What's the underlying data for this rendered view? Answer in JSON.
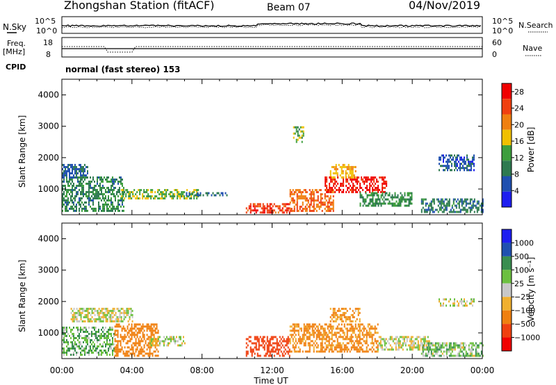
{
  "header": {
    "station_title": "Zhongshan Station (fitACF)",
    "beam": "Beam 07",
    "date": "04/Nov/2019"
  },
  "summary_panel": {
    "nsky_label": "N.Sky",
    "nsky_ticks": [
      "10^5",
      "10^0"
    ],
    "nsearch_label": "N.Search",
    "nsearch_ticks": [
      "10^5",
      "10^0"
    ],
    "freq_label": "Freq.",
    "freq_unit": "[MHz]",
    "freq_ticks": [
      "18",
      "8"
    ],
    "nave_label": "Nave",
    "nave_ticks": [
      "60",
      "0"
    ],
    "cpid_label": "CPID",
    "cpid_text": "normal (fast stereo) 153"
  },
  "colors": {
    "power_scale": [
      "#1e1ef0",
      "#2050b0",
      "#2e7a50",
      "#3d9e3d",
      "#f0c000",
      "#f08010",
      "#f04010",
      "#f00000"
    ],
    "velocity_scale": [
      "#f00000",
      "#f04010",
      "#f08010",
      "#f0b030",
      "#c8c8c8",
      "#6cc040",
      "#3a8e50",
      "#2050b0",
      "#1e1ef0"
    ]
  },
  "chart_data": [
    {
      "type": "heatmap",
      "panel": "power",
      "ylabel": "Slant Range [km]",
      "yticks": [
        "1000",
        "2000",
        "3000",
        "4000"
      ],
      "ylim": [
        180,
        4500
      ],
      "xticks": [
        "00:00",
        "04:00",
        "08:00",
        "12:00",
        "16:00",
        "20:00",
        "00:00"
      ],
      "colorbar_label": "Power [dB]",
      "colorbar_ticks": [
        "4",
        "8",
        "12",
        "16",
        "20",
        "24",
        "28"
      ],
      "colorbar_range": [
        0,
        30
      ],
      "regions": [
        {
          "t0": 0.0,
          "t1": 3.5,
          "r0": 300,
          "r1": 1400,
          "value": 10
        },
        {
          "t0": 0.0,
          "t1": 1.5,
          "r0": 1400,
          "r1": 1800,
          "value": 7
        },
        {
          "t0": 3.3,
          "t1": 7.8,
          "r0": 700,
          "r1": 1000,
          "value": 14
        },
        {
          "t0": 7.0,
          "t1": 9.5,
          "r0": 800,
          "r1": 900,
          "value": 8
        },
        {
          "t0": 10.5,
          "t1": 13.0,
          "r0": 250,
          "r1": 550,
          "value": 25
        },
        {
          "t0": 13.0,
          "t1": 15.5,
          "r0": 300,
          "r1": 1000,
          "value": 22
        },
        {
          "t0": 15.0,
          "t1": 18.5,
          "r0": 900,
          "r1": 1400,
          "value": 28
        },
        {
          "t0": 15.3,
          "t1": 16.8,
          "r0": 1400,
          "r1": 1800,
          "value": 18
        },
        {
          "t0": 17.0,
          "t1": 20.0,
          "r0": 500,
          "r1": 900,
          "value": 11
        },
        {
          "t0": 20.5,
          "t1": 24.0,
          "r0": 300,
          "r1": 700,
          "value": 9
        },
        {
          "t0": 21.5,
          "t1": 23.5,
          "r0": 1600,
          "r1": 2100,
          "value": 6
        },
        {
          "t0": 13.2,
          "t1": 13.8,
          "r0": 2500,
          "r1": 3000,
          "value": 13
        }
      ]
    },
    {
      "type": "heatmap",
      "panel": "velocity",
      "ylabel": "Slant Range [km]",
      "yticks": [
        "1000",
        "2000",
        "3000",
        "4000"
      ],
      "ylim": [
        180,
        4500
      ],
      "xticks": [
        "00:00",
        "04:00",
        "08:00",
        "12:00",
        "16:00",
        "20:00",
        "00:00"
      ],
      "xlabel": "Time UT",
      "colorbar_label": "Velocity [m s⁻¹]",
      "colorbar_ticks": [
        "1000",
        "500",
        "100",
        "25",
        "−25",
        "−100",
        "−500",
        "−1000"
      ],
      "regions": [
        {
          "t0": 0.0,
          "t1": 3.0,
          "r0": 300,
          "r1": 1200,
          "value": 80
        },
        {
          "t0": 0.5,
          "t1": 4.0,
          "r0": 1400,
          "r1": 1800,
          "value": 0
        },
        {
          "t0": 3.0,
          "t1": 5.5,
          "r0": 250,
          "r1": 1300,
          "value": -300
        },
        {
          "t0": 5.0,
          "t1": 7.0,
          "r0": 600,
          "r1": 900,
          "value": 0
        },
        {
          "t0": 10.5,
          "t1": 13.0,
          "r0": 250,
          "r1": 900,
          "value": -600
        },
        {
          "t0": 13.0,
          "t1": 18.0,
          "r0": 400,
          "r1": 1300,
          "value": -150
        },
        {
          "t0": 15.3,
          "t1": 17.0,
          "r0": 1400,
          "r1": 1800,
          "value": -120
        },
        {
          "t0": 18.0,
          "t1": 21.0,
          "r0": 500,
          "r1": 900,
          "value": 0
        },
        {
          "t0": 20.5,
          "t1": 24.0,
          "r0": 300,
          "r1": 700,
          "value": 60
        },
        {
          "t0": 21.5,
          "t1": 23.5,
          "r0": 1900,
          "r1": 2100,
          "value": 0
        }
      ]
    }
  ]
}
